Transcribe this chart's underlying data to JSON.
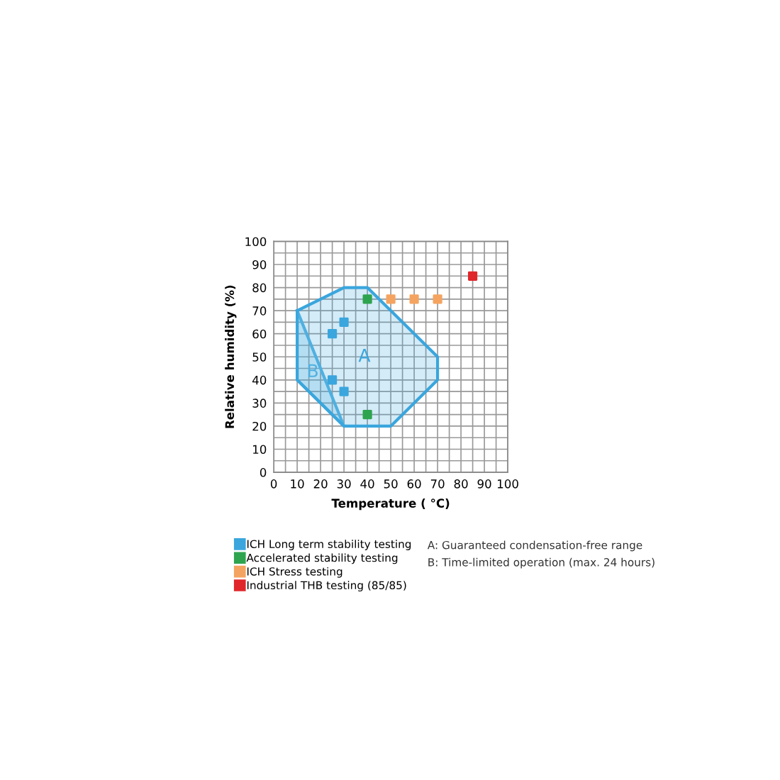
{
  "chart_data": {
    "type": "scatter",
    "xlabel": "Temperature ( °C)",
    "ylabel": "Relative humidity (%)",
    "xlim": [
      0,
      100
    ],
    "ylim": [
      0,
      100
    ],
    "xticks": [
      0,
      {
        "value": 5,
        "label": null
      },
      10,
      {
        "value": 15,
        "label": null
      },
      20,
      {
        "value": 25,
        "label": null
      },
      30,
      {
        "value": 35,
        "label": null
      },
      40,
      {
        "value": 45,
        "label": null
      },
      50,
      {
        "value": 55,
        "label": null
      },
      60,
      {
        "value": 65,
        "label": null
      },
      70,
      {
        "value": 75,
        "label": null
      },
      80,
      {
        "value": 85,
        "label": null
      },
      90,
      {
        "value": 95,
        "label": null
      },
      100
    ],
    "yticks": [
      0,
      {
        "value": 5,
        "label": null
      },
      10,
      {
        "value": 15,
        "label": null
      },
      20,
      {
        "value": 25,
        "label": null
      },
      30,
      {
        "value": 35,
        "label": null
      },
      40,
      {
        "value": 45,
        "label": null
      },
      50,
      {
        "value": 55,
        "label": null
      },
      60,
      {
        "value": 65,
        "label": null
      },
      70,
      {
        "value": 75,
        "label": null
      },
      80,
      {
        "value": 85,
        "label": null
      },
      90,
      {
        "value": 95,
        "label": null
      },
      100
    ],
    "grid": true,
    "marker": "square",
    "legend": "bottom",
    "series": [
      {
        "type": "area",
        "name": "A",
        "marker": "none",
        "color": "#3aa6dd",
        "x": [
          10,
          30,
          40,
          70,
          70,
          50,
          30,
          10,
          10
        ],
        "values": [
          70,
          80,
          80,
          50,
          40,
          20,
          20,
          40,
          70
        ]
      },
      {
        "type": "area",
        "name": "B",
        "marker": "none",
        "color": "#4fb0e0",
        "x": [
          10,
          30,
          10,
          10
        ],
        "values": [
          70,
          20,
          40,
          70
        ]
      },
      {
        "name": "ICH Long term stability testing",
        "color": "#3aa6dd",
        "x": [
          25,
          30,
          25,
          30
        ],
        "values": [
          60,
          65,
          40,
          35
        ]
      },
      {
        "name": "Accelerated stability testing",
        "color": "#2ea44f",
        "x": [
          40,
          40
        ],
        "values": [
          75,
          25
        ]
      },
      {
        "name": "ICH Stress testing",
        "color": "#f4a460",
        "x": [
          50,
          60,
          70
        ],
        "values": [
          75,
          75,
          75
        ]
      },
      {
        "name": "Industrial THB testing (85/85)",
        "color": "#e0262a",
        "x": [
          85
        ],
        "values": [
          85
        ]
      }
    ],
    "annotations": [
      "A: Guaranteed condensation-free range",
      "B: Time-limited operation (max. 24 hours)"
    ]
  }
}
